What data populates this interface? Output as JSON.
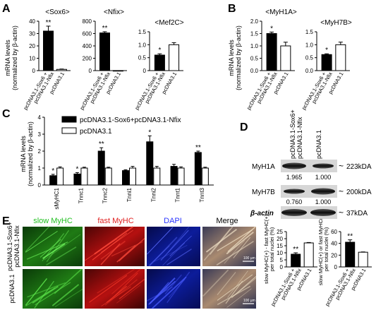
{
  "panel_letters": {
    "A": "A",
    "B": "B",
    "C": "C",
    "D": "D",
    "E": "E"
  },
  "legend_mark": "*",
  "sig_marks": {
    "one": "*",
    "two": "**"
  },
  "common": {
    "ylabel_line1": "mRNA levels",
    "ylabel_line2": "(normalized by β-actin)",
    "group_treat_line1": "pcDNA3.1-Sox6 +",
    "group_treat_line2": "pcDNA3.1-Nfix",
    "group_ctrl": "pcDNA3.1"
  },
  "chart_data": [
    {
      "id": "sox6",
      "type": "bar",
      "title": "<Sox6>",
      "categories": [
        "pcDNA3.1-Sox6 + pcDNA3.1-Nfix",
        "pcDNA3.1"
      ],
      "values": [
        32,
        1
      ],
      "errors": [
        4,
        0.3
      ],
      "ylim": [
        0,
        40
      ],
      "yticks": [
        0,
        10,
        20,
        30,
        40
      ],
      "sig": [
        "**",
        ""
      ],
      "colors": [
        "#000000",
        "#ffffff"
      ]
    },
    {
      "id": "nfix",
      "type": "bar",
      "title": "<Nfix>",
      "categories": [
        "pcDNA3.1-Sox6 + pcDNA3.1-Nfix",
        "pcDNA3.1"
      ],
      "values": [
        610,
        1
      ],
      "errors": [
        20,
        0
      ],
      "ylim": [
        0,
        800
      ],
      "yticks": [
        0,
        200,
        400,
        600,
        800
      ],
      "sig": [
        "**",
        ""
      ],
      "colors": [
        "#000000",
        "#ffffff"
      ]
    },
    {
      "id": "mef2c",
      "type": "bar",
      "title": "<Mef2C>",
      "categories": [
        "pcDNA3.1-Sox6 + pcDNA3.1-Nfix",
        "pcDNA3.1"
      ],
      "values": [
        0.6,
        1.0
      ],
      "errors": [
        0.05,
        0.08
      ],
      "ylim": [
        0,
        1.5
      ],
      "yticks": [
        0,
        0.5,
        1.0,
        1.5
      ],
      "ytick_labels": [
        "0",
        "0.5",
        "1.0",
        "1.5"
      ],
      "sig": [
        "*",
        ""
      ],
      "colors": [
        "#000000",
        "#ffffff"
      ]
    },
    {
      "id": "myh1a",
      "type": "bar",
      "title": "<MyH1A>",
      "categories": [
        "pcDNA3.1-Sox6 + pcDNA3.1-Nfix",
        "pcDNA3.1"
      ],
      "values": [
        1.5,
        1.0
      ],
      "errors": [
        0.06,
        0.15
      ],
      "ylim": [
        0,
        2.0
      ],
      "yticks": [
        0,
        0.5,
        1.0,
        1.5,
        2.0
      ],
      "ytick_labels": [
        "0.0",
        "0.5",
        "1.0",
        "1.5",
        "2.0"
      ],
      "sig": [
        "*",
        ""
      ],
      "colors": [
        "#000000",
        "#ffffff"
      ]
    },
    {
      "id": "myh7b",
      "type": "bar",
      "title": "<MyH7B>",
      "categories": [
        "pcDNA3.1-Sox6 + pcDNA3.1-Nfix",
        "pcDNA3.1"
      ],
      "values": [
        0.62,
        1.0
      ],
      "errors": [
        0.03,
        0.1
      ],
      "ylim": [
        0,
        1.5
      ],
      "yticks": [
        0,
        0.5,
        1.0,
        1.5
      ],
      "ytick_labels": [
        "0.0",
        "0.5",
        "1.0",
        "1.5"
      ],
      "sig": [
        "*",
        ""
      ],
      "colors": [
        "#000000",
        "#ffffff"
      ]
    },
    {
      "id": "genes",
      "type": "bar",
      "categories": [
        "sMyHC1",
        "Tnnc1",
        "Tnnc2",
        "Tnni1",
        "Tnni2",
        "Tnnt1",
        "Tnnt3"
      ],
      "series": [
        {
          "name": "pcDNA3.1-Sox6+pcDNA3.1-Nfix",
          "values": [
            0.55,
            0.65,
            2.0,
            0.85,
            2.55,
            1.1,
            1.92
          ],
          "errors": [
            0.08,
            0.08,
            0.2,
            0.05,
            0.35,
            0.12,
            0.08
          ],
          "color": "#000000"
        },
        {
          "name": "pcDNA3.1",
          "values": [
            1.0,
            1.0,
            1.0,
            1.0,
            1.0,
            1.0,
            1.0
          ],
          "errors": [
            0.07,
            0.05,
            0.05,
            0.1,
            0.1,
            0.07,
            0.05
          ],
          "color": "#ffffff"
        }
      ],
      "sig": [
        "*",
        "*",
        "**",
        "",
        "*",
        "",
        "**"
      ],
      "ylim": [
        0,
        4
      ],
      "yticks": [
        0,
        1,
        2,
        3,
        4
      ]
    },
    {
      "id": "slow_fast",
      "type": "bar",
      "ylabel_lines": [
        "slow MyHC(+) - fast MyHC(+)",
        "per total nuclei (%)"
      ],
      "categories": [
        "pcDNA3.1-Sox6 + pcDNA3.1-Nfix",
        "pcDNA3.1"
      ],
      "values": [
        9,
        17
      ],
      "errors": [
        1,
        0.3
      ],
      "ylim": [
        0,
        25
      ],
      "yticks": [
        0,
        5,
        10,
        15,
        20,
        25
      ],
      "sig": [
        "**",
        ""
      ],
      "colors": [
        "#000000",
        "#ffffff"
      ]
    },
    {
      "id": "slow_or_fast",
      "type": "bar",
      "ylabel_lines": [
        "slow MyHC(+) or fast MyHC(+)",
        "per total nuclei (%)"
      ],
      "categories": [
        "pcDNA3.1-Sox6 + pcDNA3.1-Nfix",
        "pcDNA3.1"
      ],
      "values": [
        42,
        25
      ],
      "errors": [
        4,
        0.5
      ],
      "ylim": [
        0,
        60
      ],
      "yticks": [
        0,
        20,
        40,
        60
      ],
      "sig": [
        "**",
        ""
      ],
      "colors": [
        "#000000",
        "#ffffff"
      ]
    }
  ],
  "western": {
    "col_labels": {
      "treat_line1": "pcDNA3.1-Sox6+",
      "treat_line2": "pcDNA3.1-Nfix",
      "ctrl": "pcDNA3.1"
    },
    "rows": [
      {
        "name": "MyH1A",
        "size": "223kDA",
        "values": [
          "1.965",
          "1.000"
        ]
      },
      {
        "name": "MyH7B",
        "size": "200kDA",
        "values": [
          "0.760",
          "1.000"
        ]
      },
      {
        "name": "β-actin",
        "size": "37kDA",
        "values": [
          "",
          ""
        ]
      }
    ]
  },
  "micrographs": {
    "col_headers": [
      "slow MyHC",
      "fast MyHC",
      "DAPI",
      "Merge"
    ],
    "header_colors": [
      "#22c022",
      "#e02020",
      "#2a35ff",
      "#000000"
    ],
    "row_labels": {
      "treat_line1": "pcDNA3.1-Sox6+",
      "treat_line2": "pcDNA3.1-Nfix",
      "ctrl": "pcDNA3.1"
    },
    "scale_label": "100 µm"
  }
}
